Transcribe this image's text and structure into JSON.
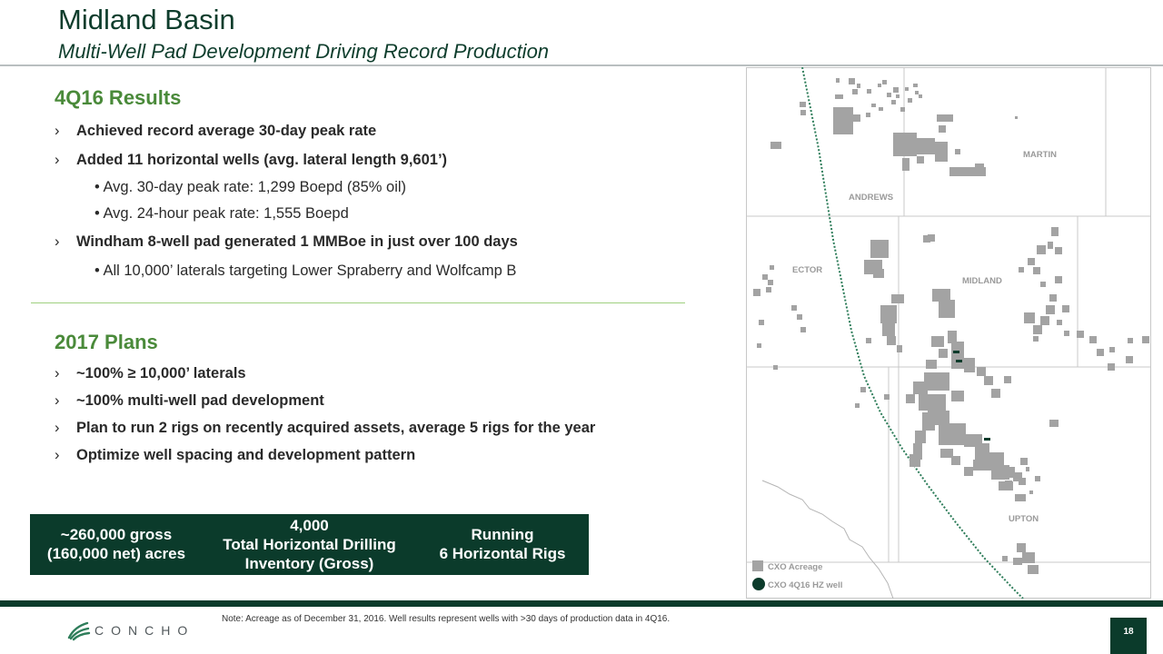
{
  "header": {
    "title": "Midland Basin",
    "subtitle": "Multi-Well Pad Development Driving Record Production"
  },
  "results": {
    "heading": "4Q16 Results",
    "bullets": [
      "Achieved record average 30-day peak rate",
      "Added 11 horizontal wells (avg. lateral length 9,601’)",
      "Windham 8-well pad generated 1 MMBoe in just over 100 days"
    ],
    "sub_items": [
      "• Avg. 30-day peak rate: 1,299 Boepd (85% oil)",
      "• Avg. 24-hour peak rate: 1,555 Boepd",
      "• All 10,000’ laterals targeting Lower Spraberry and Wolfcamp B"
    ]
  },
  "plans": {
    "heading": "2017 Plans",
    "bullets": [
      "~100% ≥ 10,000’ laterals",
      "~100% multi-well pad development",
      "Plan to run 2 rigs on recently acquired assets, average 5 rigs for the year",
      "Optimize well spacing and development pattern"
    ]
  },
  "bullet_marker": "›",
  "stats": {
    "acreage_line1": "~260,000 gross",
    "acreage_line2": "(160,000 net) acres",
    "inventory_line1": "4,000",
    "inventory_line2": "Total Horizontal Drilling",
    "inventory_line3": "Inventory (Gross)",
    "rigs_line1": "Running",
    "rigs_line2": "6 Horizontal Rigs"
  },
  "map": {
    "counties": [
      "MARTIN",
      "ANDREWS",
      "ECTOR",
      "MIDLAND",
      "UPTON"
    ],
    "legend": {
      "acreage": "CXO Acreage",
      "well": "CXO 4Q16 HZ well"
    },
    "colors": {
      "acreage": "#a3a3a3",
      "well": "#0b3b2b",
      "county_line": "#c8c8c8",
      "basin_line": "#2e7d5a"
    }
  },
  "footer": {
    "note": "Note: Acreage as of December 31, 2016. Well results represent wells with >30 days of production data in 4Q16.",
    "logo_text": "CONCHO",
    "page_number": "18"
  }
}
